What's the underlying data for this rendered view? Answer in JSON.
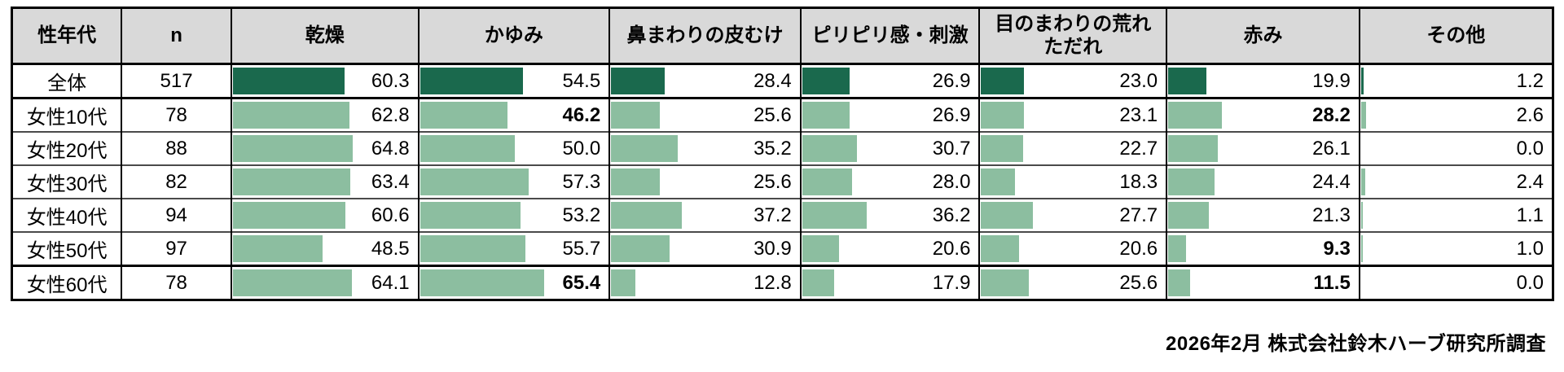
{
  "chart_data": {
    "type": "table",
    "columns": [
      "性年代",
      "n",
      "乾燥",
      "かゆみ",
      "鼻まわりの皮むけ",
      "ピリピリ感・刺激",
      "目のまわりの荒れ\nただれ",
      "赤み",
      "その他"
    ],
    "bar_scale_max": 100,
    "rows": [
      {
        "label": "全体",
        "n": "517",
        "emphasis": "total",
        "values": [
          "60.3",
          "54.5",
          "28.4",
          "26.9",
          "23.0",
          "19.9",
          "1.2"
        ],
        "bold": [
          false,
          false,
          false,
          false,
          false,
          false,
          false
        ]
      },
      {
        "label": "女性10代",
        "n": "78",
        "emphasis": "default",
        "values": [
          "62.8",
          "46.2",
          "25.6",
          "26.9",
          "23.1",
          "28.2",
          "2.6"
        ],
        "bold": [
          false,
          true,
          false,
          false,
          false,
          true,
          false
        ]
      },
      {
        "label": "女性20代",
        "n": "88",
        "emphasis": "default",
        "values": [
          "64.8",
          "50.0",
          "35.2",
          "30.7",
          "22.7",
          "26.1",
          "0.0"
        ],
        "bold": [
          false,
          false,
          false,
          false,
          false,
          false,
          false
        ]
      },
      {
        "label": "女性30代",
        "n": "82",
        "emphasis": "default",
        "values": [
          "63.4",
          "57.3",
          "25.6",
          "28.0",
          "18.3",
          "24.4",
          "2.4"
        ],
        "bold": [
          false,
          false,
          false,
          false,
          false,
          false,
          false
        ]
      },
      {
        "label": "女性40代",
        "n": "94",
        "emphasis": "default",
        "values": [
          "60.6",
          "53.2",
          "37.2",
          "36.2",
          "27.7",
          "21.3",
          "1.1"
        ],
        "bold": [
          false,
          false,
          false,
          false,
          false,
          false,
          false
        ]
      },
      {
        "label": "女性50代",
        "n": "97",
        "emphasis": "default",
        "values": [
          "48.5",
          "55.7",
          "30.9",
          "20.6",
          "20.6",
          "9.3",
          "1.0"
        ],
        "bold": [
          false,
          false,
          false,
          false,
          false,
          true,
          false
        ]
      },
      {
        "label": "女性60代",
        "n": "78",
        "emphasis": "default",
        "values": [
          "64.1",
          "65.4",
          "12.8",
          "17.9",
          "25.6",
          "11.5",
          "0.0"
        ],
        "bold": [
          false,
          true,
          false,
          false,
          false,
          true,
          false
        ]
      }
    ]
  },
  "colors": {
    "bar_total": "#1a694d",
    "bar_default": "#8cbea0",
    "header_bg": "#d9d9d9"
  },
  "footer": {
    "source": "2026年2月 株式会社鈴木ハーブ研究所調査"
  }
}
